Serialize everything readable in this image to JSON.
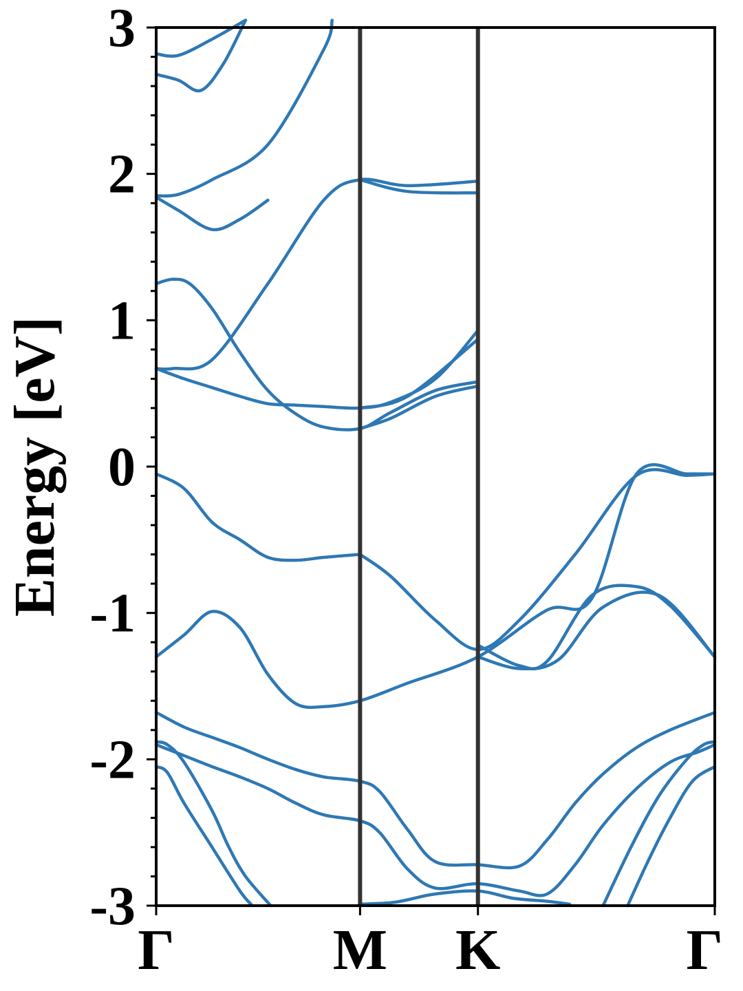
{
  "chart_data": {
    "type": "line",
    "title": "",
    "xlabel": "",
    "ylabel": "Energy [eV]",
    "ylim": [
      -3,
      3
    ],
    "xlim": [
      0,
      1
    ],
    "y_ticks": [
      {
        "value": 3,
        "label": "3"
      },
      {
        "value": 2,
        "label": "2"
      },
      {
        "value": 1,
        "label": "1"
      },
      {
        "value": 0,
        "label": "0"
      },
      {
        "value": -1,
        "label": "-1"
      },
      {
        "value": -2,
        "label": "-2"
      },
      {
        "value": -3,
        "label": "-3"
      }
    ],
    "y_minor_step": 0.2,
    "k_points": [
      {
        "label": "Γ",
        "k": 0
      },
      {
        "label": "M",
        "k": 0.365
      },
      {
        "label": "K",
        "k": 0.576
      },
      {
        "label": "Γ",
        "k": 1
      }
    ],
    "high_symmetry_lines": [
      0.365,
      0.576
    ],
    "line_color": "#2e78b4",
    "vline_color": "#333333",
    "grid": false,
    "series": [
      {
        "x": [
          0,
          0.04,
          0.1,
          0.16
        ],
        "y": [
          2.82,
          2.81,
          2.92,
          3.05
        ]
      },
      {
        "x": [
          0,
          0.04,
          0.08,
          0.12,
          0.16
        ],
        "y": [
          2.68,
          2.64,
          2.57,
          2.75,
          3.05
        ]
      },
      {
        "x": [
          0,
          0.04,
          0.1,
          0.2,
          0.3,
          0.315
        ],
        "y": [
          1.85,
          1.86,
          1.96,
          2.2,
          2.85,
          3.05
        ]
      },
      {
        "x": [
          0,
          0.04,
          0.1,
          0.15,
          0.2
        ],
        "y": [
          1.84,
          1.75,
          1.62,
          1.69,
          1.82
        ]
      },
      {
        "x": [
          0,
          0.03,
          0.1,
          0.2,
          0.3,
          0.365,
          0.45,
          0.576
        ],
        "y": [
          0.67,
          0.67,
          0.73,
          1.25,
          1.82,
          1.96,
          1.92,
          1.95
        ]
      },
      {
        "x": [
          0.365,
          0.45,
          0.576
        ],
        "y": [
          1.96,
          1.88,
          1.87
        ]
      },
      {
        "x": [
          0,
          0.03,
          0.06,
          0.1,
          0.15,
          0.2,
          0.25,
          0.3,
          0.365,
          0.42,
          0.5,
          0.576
        ],
        "y": [
          1.25,
          1.28,
          1.25,
          1.08,
          0.78,
          0.52,
          0.36,
          0.27,
          0.26,
          0.37,
          0.52,
          0.58
        ]
      },
      {
        "x": [
          0.365,
          0.42,
          0.5,
          0.576
        ],
        "y": [
          0.26,
          0.33,
          0.48,
          0.55
        ]
      },
      {
        "x": [
          0,
          0.05,
          0.1,
          0.15,
          0.2,
          0.25,
          0.3,
          0.365,
          0.42,
          0.5,
          0.576
        ],
        "y": [
          0.67,
          0.6,
          0.54,
          0.48,
          0.43,
          0.42,
          0.41,
          0.4,
          0.44,
          0.6,
          0.93
        ]
      },
      {
        "x": [
          0.365,
          0.45,
          0.576
        ],
        "y": [
          0.4,
          0.48,
          0.87
        ]
      },
      {
        "x": [
          0,
          0.05,
          0.1,
          0.15,
          0.2,
          0.25,
          0.3,
          0.365
        ],
        "y": [
          -0.05,
          -0.15,
          -0.38,
          -0.5,
          -0.62,
          -0.64,
          -0.62,
          -0.6
        ]
      },
      {
        "x": [
          0.365,
          0.42,
          0.5,
          0.576,
          0.65,
          0.75,
          0.86,
          0.95,
          1.0
        ],
        "y": [
          -0.6,
          -0.75,
          -1.05,
          -1.25,
          -1.05,
          -0.6,
          -0.06,
          -0.06,
          -0.05
        ]
      },
      {
        "x": [
          0,
          0.05,
          0.1,
          0.15,
          0.2,
          0.25,
          0.3,
          0.365,
          0.45,
          0.576,
          0.7,
          0.78,
          0.86,
          0.95,
          1.0
        ],
        "y": [
          -1.3,
          -1.15,
          -0.99,
          -1.1,
          -1.42,
          -1.62,
          -1.64,
          -1.6,
          -1.48,
          -1.3,
          -0.98,
          -0.9,
          -0.05,
          -0.05,
          -0.05
        ]
      },
      {
        "x": [
          0.576,
          0.65,
          0.7,
          0.78,
          0.86,
          0.92,
          1.0
        ],
        "y": [
          -1.22,
          -1.36,
          -1.33,
          -0.88,
          -0.82,
          -0.95,
          -1.3
        ]
      },
      {
        "x": [
          0.576,
          0.65,
          0.72,
          0.8,
          0.9,
          1.0
        ],
        "y": [
          -1.3,
          -1.38,
          -1.32,
          -0.96,
          -0.88,
          -1.3
        ]
      },
      {
        "x": [
          0,
          0.05,
          0.1,
          0.15,
          0.2,
          0.25,
          0.3,
          0.365,
          0.4,
          0.45,
          0.5,
          0.576,
          0.65,
          0.7,
          0.75,
          0.8,
          0.86,
          0.92,
          1.0
        ],
        "y": [
          -1.68,
          -1.78,
          -1.85,
          -1.92,
          -2.0,
          -2.07,
          -2.12,
          -2.15,
          -2.22,
          -2.48,
          -2.7,
          -2.72,
          -2.73,
          -2.55,
          -2.3,
          -2.1,
          -1.92,
          -1.8,
          -1.68
        ]
      },
      {
        "x": [
          0,
          0.04,
          0.1,
          0.15,
          0.2,
          0.25,
          0.3,
          0.365,
          0.4,
          0.45,
          0.5,
          0.576,
          0.65,
          0.7,
          0.75,
          0.8,
          0.86,
          0.92,
          0.97,
          1.0
        ],
        "y": [
          -1.9,
          -1.96,
          -2.05,
          -2.12,
          -2.2,
          -2.3,
          -2.38,
          -2.42,
          -2.5,
          -2.75,
          -2.88,
          -2.85,
          -2.9,
          -2.92,
          -2.72,
          -2.45,
          -2.2,
          -2.02,
          -1.95,
          -1.9
        ]
      },
      {
        "x": [
          0,
          0.02,
          0.05,
          0.1,
          0.15,
          0.172
        ],
        "y": [
          -2.05,
          -2.09,
          -2.3,
          -2.6,
          -2.9,
          -3.0
        ]
      },
      {
        "x": [
          0,
          0.02,
          0.05,
          0.1,
          0.13,
          0.16,
          0.205
        ],
        "y": [
          -1.88,
          -1.9,
          -2.02,
          -2.35,
          -2.6,
          -2.8,
          -3.0
        ]
      },
      {
        "x": [
          0.844,
          0.88,
          0.92,
          0.96,
          1.0
        ],
        "y": [
          -3.0,
          -2.7,
          -2.4,
          -2.15,
          -2.05
        ]
      },
      {
        "x": [
          0.8,
          0.85,
          0.9,
          0.95,
          0.98,
          1.0
        ],
        "y": [
          -3.0,
          -2.6,
          -2.25,
          -2.0,
          -1.9,
          -1.88
        ]
      },
      {
        "x": [
          0.365,
          0.42,
          0.45,
          0.5,
          0.576,
          0.64,
          0.7,
          0.74
        ],
        "y": [
          -2.99,
          -2.98,
          -2.96,
          -2.92,
          -2.9,
          -2.95,
          -2.97,
          -2.99
        ]
      }
    ]
  }
}
